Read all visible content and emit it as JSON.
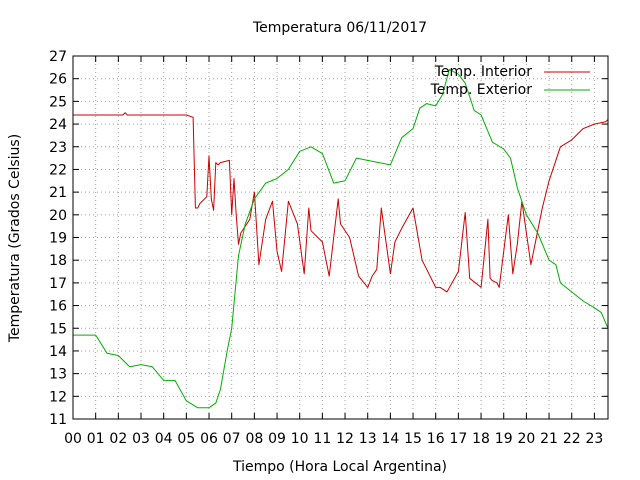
{
  "chart_data": {
    "type": "line",
    "title": "Temperatura 06/11/2017",
    "xlabel": "Tiempo (Hora Local Argentina)",
    "ylabel": "Temperatura (Grados Celsius)",
    "xlim": [
      0,
      23.6
    ],
    "ylim": [
      11,
      27
    ],
    "x_ticks": [
      "00",
      "01",
      "02",
      "03",
      "04",
      "05",
      "06",
      "07",
      "08",
      "09",
      "10",
      "11",
      "12",
      "13",
      "14",
      "15",
      "16",
      "17",
      "18",
      "19",
      "20",
      "21",
      "22",
      "23"
    ],
    "y_ticks": [
      11,
      12,
      13,
      14,
      15,
      16,
      17,
      18,
      19,
      20,
      21,
      22,
      23,
      24,
      25,
      26,
      27
    ],
    "grid": true,
    "legend_position": "top-right",
    "series": [
      {
        "name": "Temp. Interior",
        "color": "#cc0000",
        "x": [
          0,
          2.2,
          2.3,
          2.4,
          5,
          5.3,
          5.4,
          5.5,
          5.6,
          5.9,
          6.0,
          6.1,
          6.2,
          6.3,
          6.4,
          6.5,
          6.9,
          7.0,
          7.1,
          7.2,
          7.3,
          7.4,
          7.8,
          8.0,
          8.2,
          8.5,
          8.8,
          9.0,
          9.2,
          9.5,
          9.9,
          10.2,
          10.4,
          10.5,
          11.0,
          11.3,
          11.7,
          11.8,
          12.2,
          12.6,
          13.0,
          13.2,
          13.4,
          13.6,
          14.0,
          14.2,
          14.5,
          15.0,
          15.4,
          16.0,
          16.2,
          16.5,
          17.0,
          17.3,
          17.5,
          18.0,
          18.3,
          18.4,
          18.5,
          18.7,
          18.8,
          19.2,
          19.4,
          19.6,
          19.8,
          20.2,
          20.7,
          21.0,
          21.5,
          22.0,
          22.5,
          23.0,
          23.5,
          23.6
        ],
        "values": [
          24.4,
          24.4,
          24.5,
          24.4,
          24.4,
          24.3,
          20.3,
          20.3,
          20.5,
          20.8,
          22.6,
          20.7,
          20.2,
          22.3,
          22.2,
          22.3,
          22.4,
          20.0,
          21.6,
          20.0,
          18.7,
          19.2,
          19.8,
          21.0,
          17.8,
          19.8,
          20.6,
          18.4,
          17.5,
          20.6,
          19.6,
          17.4,
          20.3,
          19.3,
          18.8,
          17.3,
          20.7,
          19.6,
          19.0,
          17.3,
          16.8,
          17.3,
          17.6,
          20.3,
          17.4,
          18.8,
          19.4,
          20.3,
          18.0,
          16.8,
          16.8,
          16.6,
          17.5,
          20.1,
          17.2,
          16.8,
          19.8,
          17.2,
          17.1,
          17.0,
          16.8,
          20.0,
          17.4,
          18.7,
          20.6,
          17.8,
          20.3,
          21.5,
          23.0,
          23.3,
          23.8,
          24.0,
          24.1,
          24.2
        ]
      },
      {
        "name": "Temp. Exterior",
        "color": "#00b000",
        "x": [
          0,
          1.0,
          1.5,
          2.0,
          2.5,
          3.0,
          3.5,
          4.0,
          4.5,
          5.0,
          5.5,
          6.0,
          6.3,
          6.5,
          6.8,
          7.0,
          7.3,
          7.6,
          8.0,
          8.5,
          9.0,
          9.5,
          10.0,
          10.5,
          11.0,
          11.5,
          12.0,
          12.5,
          13.0,
          13.5,
          14.0,
          14.5,
          15.0,
          15.3,
          15.6,
          16.0,
          16.3,
          16.6,
          17.0,
          17.3,
          17.5,
          17.7,
          18.0,
          18.5,
          19.0,
          19.3,
          19.6,
          20.0,
          20.5,
          21.0,
          21.3,
          21.5,
          22.0,
          22.5,
          23.0,
          23.3,
          23.6
        ],
        "values": [
          14.7,
          14.7,
          13.9,
          13.8,
          13.3,
          13.4,
          13.3,
          12.7,
          12.7,
          11.8,
          11.5,
          11.5,
          11.7,
          12.3,
          14.0,
          15.0,
          18.2,
          19.6,
          20.7,
          21.4,
          21.6,
          22.0,
          22.8,
          23.0,
          22.7,
          21.4,
          21.5,
          22.5,
          22.4,
          22.3,
          22.2,
          23.4,
          23.8,
          24.7,
          24.9,
          24.8,
          25.3,
          26.4,
          26.2,
          25.8,
          25.2,
          24.6,
          24.4,
          23.2,
          22.9,
          22.5,
          21.2,
          20.0,
          19.2,
          18.0,
          17.8,
          17.0,
          16.6,
          16.2,
          15.9,
          15.7,
          15.0
        ]
      }
    ]
  }
}
